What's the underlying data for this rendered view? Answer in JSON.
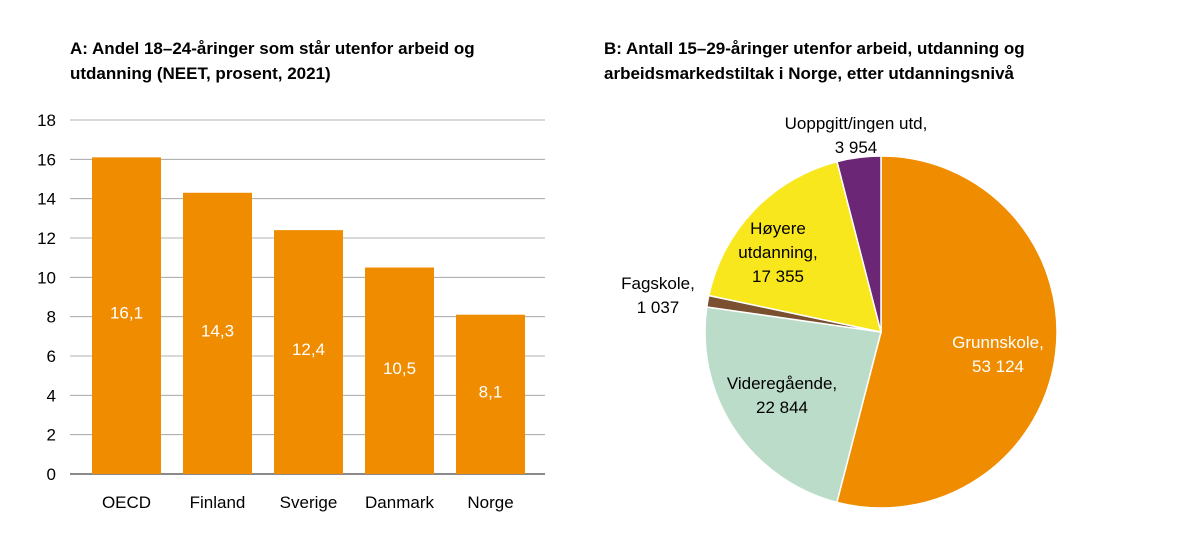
{
  "chart_data": [
    {
      "type": "bar",
      "title": "A: Andel 18–24-åringer som står utenfor arbeid og utdanning (NEET, prosent, 2021)",
      "categories": [
        "OECD",
        "Finland",
        "Sverige",
        "Danmark",
        "Norge"
      ],
      "values": [
        16.1,
        14.3,
        12.4,
        10.5,
        8.1
      ],
      "value_labels": [
        "16,1",
        "14,3",
        "12,4",
        "10,5",
        "8,1"
      ],
      "ylim": [
        0,
        18
      ],
      "yticks": [
        0,
        2,
        4,
        6,
        8,
        10,
        12,
        14,
        16,
        18
      ],
      "xlabel": "",
      "ylabel": "",
      "grid": true,
      "bar_color": "#f08c00",
      "label_color": "#ffffff"
    },
    {
      "type": "pie",
      "title": "B: Antall 15–29-åringer utenfor arbeid, utdanning og arbeidsmarkedstiltak i Norge, etter utdanningsnivå",
      "start": "top",
      "direction": "clockwise",
      "slices": [
        {
          "label": "Grunnskole,",
          "value": 53124,
          "value_label": "53 124",
          "color": "#f08c00",
          "text_color": "#ffffff"
        },
        {
          "label": "Videregående,",
          "value": 22844,
          "value_label": "22 844",
          "color": "#bcdcca",
          "text_color": "#000000"
        },
        {
          "label": "Fagskole,",
          "value": 1037,
          "value_label": "1 037",
          "color": "#7a5030",
          "text_color": "#000000"
        },
        {
          "label": "Høyere utdanning,",
          "value": 17355,
          "value_label": "17 355",
          "color": "#f8e71c",
          "text_color": "#000000"
        },
        {
          "label": "Uoppgitt/ingen utd,",
          "value": 3954,
          "value_label": "3 954",
          "color": "#6b2675",
          "text_color": "#000000"
        }
      ]
    }
  ]
}
